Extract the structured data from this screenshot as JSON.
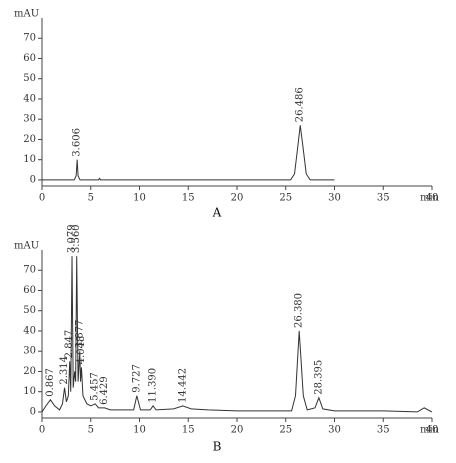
{
  "chart_data": [
    {
      "type": "line",
      "panel": "A",
      "y_label": "mAU",
      "x_label": "min",
      "xlim": [
        0,
        40
      ],
      "ylim": [
        -3,
        80
      ],
      "xticks": [
        0,
        5,
        10,
        15,
        20,
        25,
        30,
        35,
        40
      ],
      "yticks": [
        0,
        10,
        20,
        30,
        40,
        50,
        60,
        70
      ],
      "color": "#333333",
      "series": [
        {
          "x": [
            0,
            3.3,
            3.5,
            3.606,
            3.7,
            3.9,
            5.8,
            5.9,
            6.0,
            25.5,
            25.9,
            26.2,
            26.486,
            26.8,
            27.1,
            27.5,
            30
          ],
          "values": [
            0,
            0,
            2,
            10,
            2,
            0,
            0,
            0.8,
            0,
            0,
            3,
            15,
            27,
            15,
            3,
            0,
            0
          ]
        }
      ],
      "annotations": [
        {
          "x": 3.606,
          "y": 10,
          "label": "3.606"
        },
        {
          "x": 26.486,
          "y": 27,
          "label": "26.486"
        }
      ]
    },
    {
      "type": "line",
      "panel": "B",
      "y_label": "mAU",
      "x_label": "min",
      "xlim": [
        0,
        40
      ],
      "ylim": [
        -3,
        80
      ],
      "xticks": [
        0,
        5,
        10,
        15,
        20,
        25,
        30,
        35,
        40
      ],
      "yticks": [
        0,
        10,
        20,
        30,
        40,
        50,
        60,
        70
      ],
      "color": "#333333",
      "series": [
        {
          "x": [
            0,
            0.4,
            0.867,
            1.3,
            1.8,
            2.1,
            2.314,
            2.5,
            2.7,
            2.847,
            2.95,
            3.079,
            3.2,
            3.35,
            3.45,
            3.56,
            3.7,
            3.877,
            3.95,
            4.048,
            4.2,
            4.6,
            5.0,
            5.457,
            5.8,
            6.429,
            7,
            9.4,
            9.727,
            10.1,
            11.1,
            11.39,
            11.7,
            13.5,
            14.442,
            15.3,
            17,
            20,
            25.6,
            26.0,
            26.38,
            26.8,
            27.2,
            28.0,
            28.395,
            28.8,
            30,
            35,
            38.5,
            39.2,
            40
          ],
          "values": [
            0,
            3,
            6,
            3,
            1,
            4,
            12,
            5,
            8,
            25,
            10,
            77,
            12,
            20,
            15,
            77,
            15,
            30,
            15,
            22,
            8,
            4,
            3,
            4,
            2,
            2,
            1,
            1,
            8,
            1,
            1,
            3,
            1,
            1.5,
            3,
            1.5,
            1,
            0.5,
            0.5,
            8,
            40,
            8,
            1,
            2,
            7,
            1.5,
            0.5,
            0.5,
            0,
            2,
            0
          ]
        }
      ],
      "annotations": [
        {
          "x": 0.867,
          "y": 6,
          "label": "0.867"
        },
        {
          "x": 2.314,
          "y": 12,
          "label": "2.314"
        },
        {
          "x": 2.847,
          "y": 25,
          "label": "2.847"
        },
        {
          "x": 3.079,
          "y": 77,
          "label": "3.079"
        },
        {
          "x": 3.56,
          "y": 77,
          "label": "3.560"
        },
        {
          "x": 3.877,
          "y": 30,
          "label": "3.877"
        },
        {
          "x": 4.048,
          "y": 22,
          "label": "4.048"
        },
        {
          "x": 5.457,
          "y": 4,
          "label": "5.457"
        },
        {
          "x": 6.429,
          "y": 2,
          "label": "6.429"
        },
        {
          "x": 9.727,
          "y": 8,
          "label": "9.727"
        },
        {
          "x": 11.39,
          "y": 3,
          "label": "11.390"
        },
        {
          "x": 14.442,
          "y": 3,
          "label": "14.442"
        },
        {
          "x": 26.38,
          "y": 40,
          "label": "26.380"
        },
        {
          "x": 28.395,
          "y": 7,
          "label": "28.395"
        }
      ]
    }
  ]
}
